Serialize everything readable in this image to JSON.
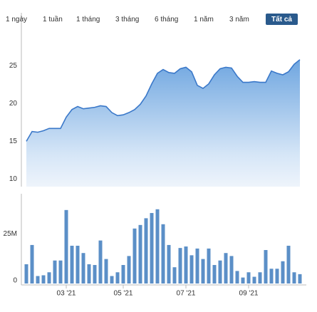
{
  "range_buttons": [
    {
      "label": "1 ngày"
    },
    {
      "label": "1 tuần"
    },
    {
      "label": "1 tháng"
    },
    {
      "label": "3 tháng"
    },
    {
      "label": "6 tháng"
    },
    {
      "label": "1 năm"
    },
    {
      "label": "3 năm"
    },
    {
      "label": "Tất cả",
      "selected": true
    }
  ],
  "chart_data": [
    {
      "type": "area",
      "color": "#3a78c9",
      "ylim": [
        9,
        32
      ],
      "yticks": [
        10,
        15,
        20,
        25
      ],
      "values": [
        15.0,
        16.3,
        16.2,
        16.4,
        16.7,
        16.7,
        16.7,
        18.2,
        19.2,
        19.6,
        19.3,
        19.4,
        19.5,
        19.7,
        19.6,
        18.8,
        18.4,
        18.5,
        18.8,
        19.2,
        19.9,
        21,
        22.6,
        24,
        24.5,
        24.1,
        24,
        24.6,
        24.8,
        24.2,
        22.4,
        22,
        22.6,
        23.8,
        24.6,
        24.8,
        24.7,
        23.6,
        22.8,
        22.8,
        22.9,
        22.8,
        22.8,
        24.3,
        24,
        23.8,
        24.2,
        25.2,
        25.8
      ]
    },
    {
      "type": "bar",
      "color": "#5b8fc7",
      "ylim": [
        0,
        48000000
      ],
      "yticks": [
        0,
        {
          "value": 25000000,
          "label": "25M"
        }
      ],
      "categories": [
        null,
        null,
        null,
        null,
        null,
        null,
        null,
        "03 '21",
        null,
        null,
        null,
        null,
        null,
        null,
        null,
        null,
        null,
        "05 '21",
        null,
        null,
        null,
        null,
        null,
        null,
        null,
        null,
        null,
        null,
        "07 '21",
        null,
        null,
        null,
        null,
        null,
        null,
        null,
        null,
        null,
        null,
        "09 '21",
        null,
        null,
        null,
        null,
        null,
        null,
        null,
        null,
        null
      ],
      "values": [
        10300000,
        20600000,
        4000000,
        4400000,
        6000000,
        12300000,
        12300000,
        39300000,
        20200000,
        20200000,
        16300000,
        10300000,
        9900000,
        23000000,
        13100000,
        4000000,
        6000000,
        9900000,
        14700000,
        29400000,
        31300000,
        34900000,
        37700000,
        39700000,
        31700000,
        20600000,
        8700000,
        19000000,
        19800000,
        15100000,
        18700000,
        13100000,
        18700000,
        9900000,
        12300000,
        16300000,
        14700000,
        6700000,
        3200000,
        6000000,
        3600000,
        6000000,
        17900000,
        7900000,
        7900000,
        11900000,
        20200000,
        6000000,
        5000000
      ]
    }
  ]
}
